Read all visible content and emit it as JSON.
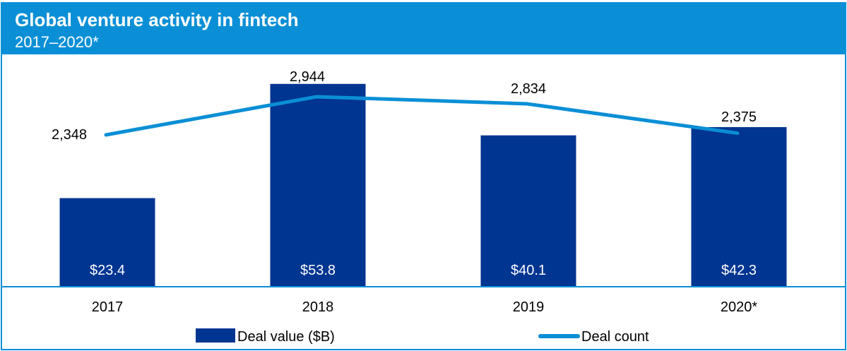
{
  "header": {
    "title": "Global venture activity in fintech",
    "subtitle": "2017–2020*"
  },
  "chart_data": {
    "type": "bar+line",
    "categories": [
      "2017",
      "2018",
      "2019",
      "2020*"
    ],
    "series": [
      {
        "name": "Deal value ($B)",
        "type": "bar",
        "values": [
          23.4,
          53.8,
          40.1,
          42.3
        ],
        "labels": [
          "$23.4",
          "$53.8",
          "$40.1",
          "$42.3"
        ],
        "color": "#003591"
      },
      {
        "name": "Deal count",
        "type": "line",
        "values": [
          2348,
          2944,
          2834,
          2375
        ],
        "labels": [
          "2,348",
          "2,944",
          "2,834",
          "2,375"
        ],
        "color": "#0a8fd6"
      }
    ],
    "legend": "bottom",
    "grid": false
  }
}
